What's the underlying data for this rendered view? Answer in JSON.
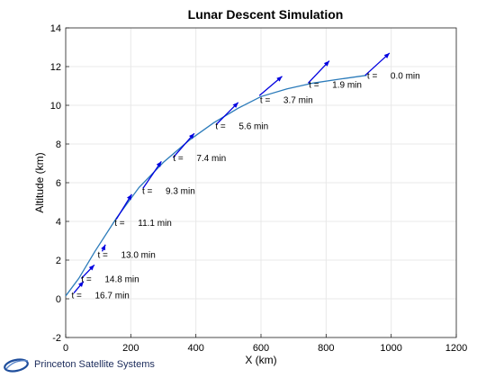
{
  "chart_data": {
    "type": "line",
    "title": "Lunar Descent Simulation",
    "xlabel": "X (km)",
    "ylabel": "Altitude (km)",
    "xlim": [
      0,
      1200
    ],
    "ylim": [
      -2,
      14
    ],
    "xticks": [
      0,
      200,
      400,
      600,
      800,
      1000,
      1200
    ],
    "yticks": [
      -2,
      0,
      2,
      4,
      6,
      8,
      10,
      12,
      14
    ],
    "grid": true,
    "series": [
      {
        "x": [
          925,
          840,
          760,
          680,
          600,
          530,
          455,
          380,
          300,
          225,
          155,
          90,
          40,
          0
        ],
        "y": [
          11.55,
          11.35,
          11.15,
          10.85,
          10.45,
          9.85,
          9.1,
          8.2,
          7.05,
          5.75,
          4.15,
          2.45,
          1.05,
          0.15
        ]
      }
    ],
    "velocity_arrows": [
      {
        "x": 920,
        "y": 11.55,
        "dx": 75,
        "dy": 1.15
      },
      {
        "x": 745,
        "y": 11.15,
        "dx": 65,
        "dy": 1.15
      },
      {
        "x": 595,
        "y": 10.5,
        "dx": 70,
        "dy": 1.0
      },
      {
        "x": 462,
        "y": 9.0,
        "dx": 68,
        "dy": 1.15
      },
      {
        "x": 330,
        "y": 7.3,
        "dx": 65,
        "dy": 1.25
      },
      {
        "x": 237,
        "y": 5.7,
        "dx": 57,
        "dy": 1.4
      },
      {
        "x": 155,
        "y": 4.1,
        "dx": 48,
        "dy": 1.3
      },
      {
        "x": 112,
        "y": 2.45,
        "dx": 10,
        "dy": 0.35
      },
      {
        "x": 48,
        "y": 1.05,
        "dx": 40,
        "dy": 0.7
      },
      {
        "x": 25,
        "y": 0.3,
        "dx": 30,
        "dy": 0.6
      }
    ],
    "annotations": [
      {
        "prefix": "t =",
        "value": "0.0 min",
        "x": 926,
        "y": 11.55
      },
      {
        "prefix": "t =",
        "value": "1.9 min",
        "x": 747,
        "y": 11.1
      },
      {
        "prefix": "t =",
        "value": "3.7 min",
        "x": 597,
        "y": 10.3
      },
      {
        "prefix": "t =",
        "value": "5.6 min",
        "x": 460,
        "y": 8.95
      },
      {
        "prefix": "t =",
        "value": "7.4 min",
        "x": 330,
        "y": 7.3
      },
      {
        "prefix": "t =",
        "value": "9.3 min",
        "x": 235,
        "y": 5.6
      },
      {
        "prefix": "t =",
        "value": "11.1 min",
        "x": 150,
        "y": 3.95
      },
      {
        "prefix": "t =",
        "value": "13.0 min",
        "x": 98,
        "y": 2.3
      },
      {
        "prefix": "t =",
        "value": "14.8 min",
        "x": 48,
        "y": 1.05
      },
      {
        "prefix": "t =",
        "value": "16.7 min",
        "x": 18,
        "y": 0.2
      }
    ]
  },
  "branding": {
    "text": "Princeton Satellite Systems",
    "logo_color": "#1f4e9c"
  },
  "colors": {
    "trajectory": "#2b7bba",
    "arrow": "#0000e0",
    "grid": "#e8e8e8",
    "axes": "#222222"
  }
}
